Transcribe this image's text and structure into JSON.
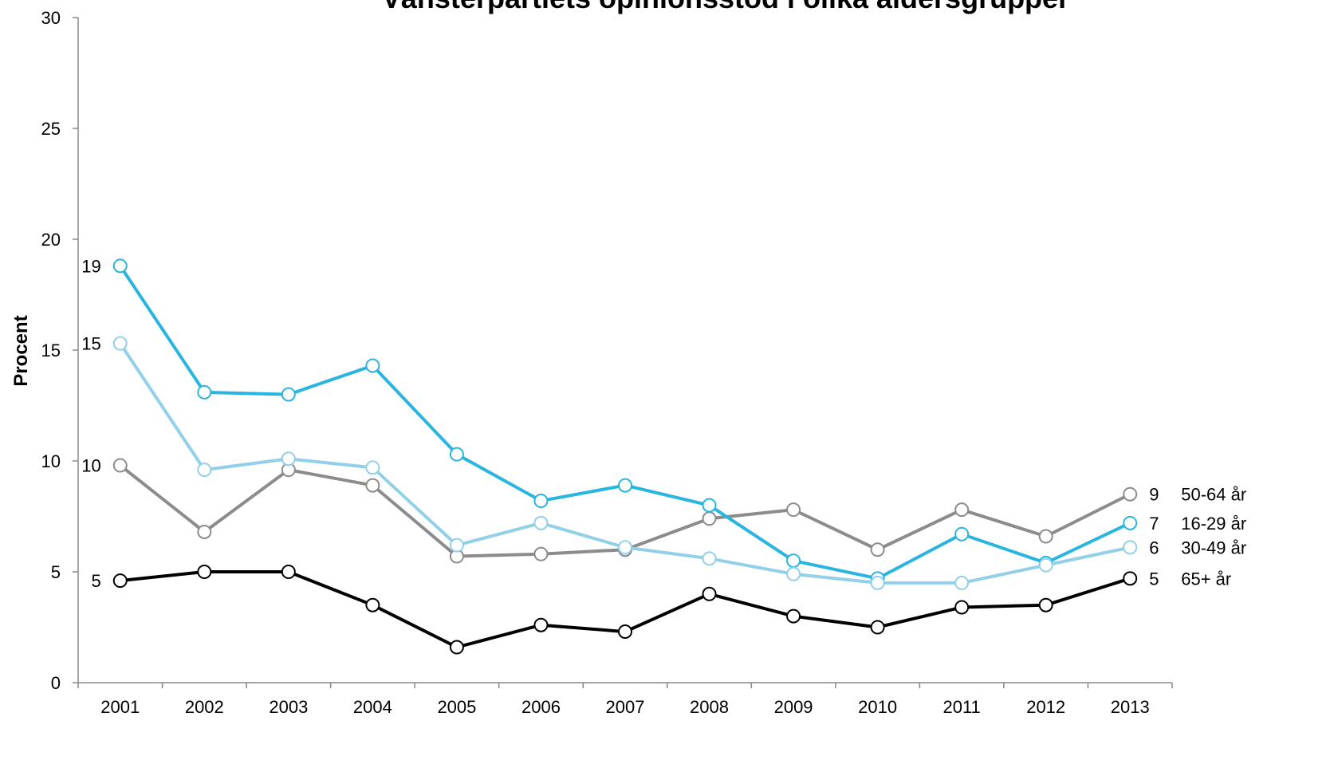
{
  "chart_data": {
    "type": "line",
    "title": "Vänsterpartiets opinionsstöd i olika åldersgrupper",
    "y_label": "Procent",
    "categories": [
      "2001",
      "2002",
      "2003",
      "2004",
      "2005",
      "2006",
      "2007",
      "2008",
      "2009",
      "2010",
      "2011",
      "2012",
      "2013"
    ],
    "ylim": [
      0,
      30
    ],
    "yticks": [
      0,
      5,
      10,
      15,
      20,
      25,
      30
    ],
    "series": [
      {
        "name": "50-64 år",
        "color": "#8c8c8c",
        "values": [
          9.8,
          6.8,
          9.6,
          8.9,
          5.7,
          5.8,
          6.0,
          7.4,
          7.8,
          6.0,
          7.8,
          6.6,
          8.5
        ],
        "value_labels": [
          "10",
          null,
          null,
          null,
          null,
          null,
          null,
          null,
          null,
          null,
          null,
          null,
          "9"
        ]
      },
      {
        "name": "16-29 år",
        "color": "#29b5e0",
        "values": [
          18.8,
          13.1,
          13.0,
          14.3,
          10.3,
          8.2,
          8.9,
          8.0,
          5.5,
          4.7,
          6.7,
          5.4,
          7.2
        ],
        "value_labels": [
          "19",
          null,
          null,
          null,
          null,
          null,
          null,
          null,
          null,
          null,
          null,
          null,
          "7"
        ]
      },
      {
        "name": "30-49 år",
        "color": "#92d0ea",
        "values": [
          15.3,
          9.6,
          10.1,
          9.7,
          6.2,
          7.2,
          6.1,
          5.6,
          4.9,
          4.5,
          4.5,
          5.3,
          6.1
        ],
        "value_labels": [
          "15",
          null,
          null,
          null,
          null,
          null,
          null,
          null,
          null,
          null,
          null,
          null,
          "6"
        ]
      },
      {
        "name": "65+ år",
        "color": "#000000",
        "values": [
          4.6,
          5.0,
          5.0,
          3.5,
          1.6,
          2.6,
          2.3,
          4.0,
          3.0,
          2.5,
          3.4,
          3.5,
          4.7
        ],
        "value_labels": [
          "5",
          null,
          null,
          null,
          null,
          null,
          null,
          null,
          null,
          null,
          null,
          null,
          "5"
        ]
      }
    ]
  }
}
